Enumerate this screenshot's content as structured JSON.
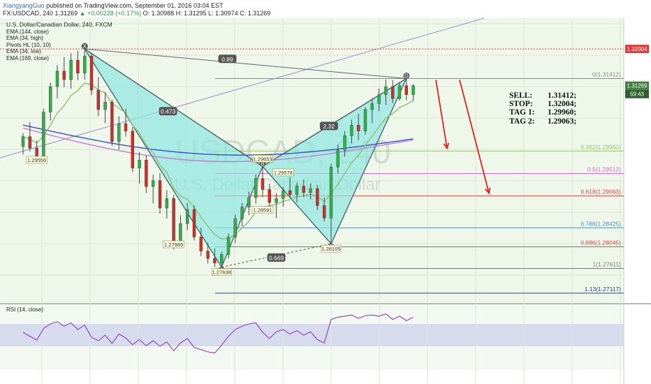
{
  "header": {
    "author": "XiangyangGuo",
    "published": "published on TradingView.com, September 01, 2016 03:04 EST",
    "symbol_line": "FX:USDCAD, 240",
    "last": "1.31269",
    "change": "▲ +0.00228 (+0.17%)",
    "ohlc": "O: 1.30988 H: 1.31295 L: 1.30974 C: 1.31269"
  },
  "indicators": {
    "title": "U.S. Dollar/Canadian Dollar, 240, FXCM",
    "items": [
      "EMA (144, close)",
      "EMA (34, high)",
      "Pivots HL (10, 10)",
      "EMA (34, low)",
      "EMA (169, close)"
    ]
  },
  "rsi_label": "RSI (14, close)",
  "watermark": {
    "symbol": "USDCAD, 240",
    "name": "U.S. Dollar/Canadian Dollar"
  },
  "trade_box": {
    "rows": [
      {
        "k": "SELL:",
        "v": "1.31412;"
      },
      {
        "k": "STOP:",
        "v": "1.32004;"
      },
      {
        "k": "TAG 1:",
        "v": "1.29960;"
      },
      {
        "k": "TAG 2:",
        "v": "1.29063;"
      }
    ]
  },
  "chart_data": {
    "type": "candlestick",
    "symbol": "FX:USDCAD",
    "timeframe": "240",
    "price_axis": {
      "last_price_label": "1.31269",
      "stop_label": "1.32004",
      "countdown_label": "59:43"
    },
    "fib_levels": [
      {
        "label": "0(1.31412)",
        "value": 1.31412,
        "color": "#8a8a8a"
      },
      {
        "label": "0.382(1.29960)",
        "value": 1.2996,
        "color": "#9fbf74"
      },
      {
        "label": "0.5(1.29512)",
        "value": 1.29512,
        "color": "#d86ad8"
      },
      {
        "label": "0.618(1.29063)",
        "value": 1.29063,
        "color": "#d84a4a"
      },
      {
        "label": "0.786(1.28425)",
        "value": 1.28425,
        "color": "#4b8fd0"
      },
      {
        "label": "0.886(1.28045)",
        "value": 1.28045,
        "color": "#d84a4a"
      },
      {
        "label": "1(1.27611)",
        "value": 1.27611,
        "color": "#777777"
      },
      {
        "label": "1.13(1.27117)",
        "value": 1.27117,
        "color": "#2a3f8a"
      }
    ],
    "stop_level": {
      "value": 1.32004,
      "label": "1.32004"
    },
    "pattern": {
      "name": "bearish harmonic XABCD",
      "points": [
        {
          "label": "X",
          "value": 1.32004,
          "candle": 9
        },
        {
          "label": "A",
          "value": 1.27638,
          "candle": 29,
          "price_label": "1.27638"
        },
        {
          "label": "B",
          "value": 1.29653,
          "candle": 35,
          "price_label": "1.29653"
        },
        {
          "label": "C",
          "value": 1.28105,
          "candle": 45,
          "price_label": "1.28105"
        },
        {
          "label": "D",
          "value": 1.31412,
          "candle": 56
        }
      ],
      "ratios": [
        "0.473",
        "0.669",
        "2.32",
        "0.89"
      ]
    },
    "pivot_labels": [
      {
        "label": "1.29556",
        "value": 1.2977,
        "candle": 2
      },
      {
        "label": "1.27989",
        "value": 1.2808,
        "candle": 22
      },
      {
        "label": "1.29578",
        "value": 1.2952,
        "candle": 38
      },
      {
        "label": "1.28591",
        "value": 1.2877,
        "candle": 35
      }
    ],
    "candles": [
      [
        1.3005,
        1.3032,
        1.2989,
        1.3025
      ],
      [
        1.3025,
        1.3054,
        1.2995,
        1.3002
      ],
      [
        1.3002,
        1.3017,
        1.2976,
        1.2985
      ],
      [
        1.2985,
        1.3081,
        1.2981,
        1.3074
      ],
      [
        1.3074,
        1.3133,
        1.3057,
        1.3125
      ],
      [
        1.3125,
        1.3168,
        1.3101,
        1.3156
      ],
      [
        1.3156,
        1.3184,
        1.3124,
        1.3139
      ],
      [
        1.3139,
        1.3192,
        1.3121,
        1.3178
      ],
      [
        1.3178,
        1.3197,
        1.3138,
        1.3152
      ],
      [
        1.3152,
        1.3201,
        1.3139,
        1.3186
      ],
      [
        1.3186,
        1.3193,
        1.3108,
        1.3118
      ],
      [
        1.3118,
        1.3144,
        1.3066,
        1.3079
      ],
      [
        1.3079,
        1.3114,
        1.3052,
        1.3094
      ],
      [
        1.3094,
        1.3099,
        1.3006,
        1.3015
      ],
      [
        1.3015,
        1.3066,
        1.2999,
        1.3051
      ],
      [
        1.3051,
        1.3081,
        1.3025,
        1.3036
      ],
      [
        1.3036,
        1.3044,
        1.2954,
        1.2962
      ],
      [
        1.2962,
        1.2994,
        1.2931,
        1.2978
      ],
      [
        1.2978,
        1.2987,
        1.2912,
        1.2925
      ],
      [
        1.2925,
        1.2949,
        1.2891,
        1.2937
      ],
      [
        1.2937,
        1.2952,
        1.2871,
        1.2882
      ],
      [
        1.2882,
        1.2918,
        1.2861,
        1.2901
      ],
      [
        1.2901,
        1.2908,
        1.2799,
        1.2813
      ],
      [
        1.2813,
        1.2868,
        1.2802,
        1.2851
      ],
      [
        1.2851,
        1.2892,
        1.2838,
        1.2879
      ],
      [
        1.2879,
        1.2887,
        1.2817,
        1.2824
      ],
      [
        1.2824,
        1.2843,
        1.2786,
        1.2796
      ],
      [
        1.2796,
        1.2812,
        1.2771,
        1.2781
      ],
      [
        1.2781,
        1.2801,
        1.2764,
        1.2772
      ],
      [
        1.2772,
        1.2795,
        1.2763,
        1.2789
      ],
      [
        1.2789,
        1.2831,
        1.2781,
        1.2824
      ],
      [
        1.2824,
        1.2869,
        1.2812,
        1.2861
      ],
      [
        1.2861,
        1.2892,
        1.2845,
        1.2884
      ],
      [
        1.2884,
        1.2915,
        1.2868,
        1.2903
      ],
      [
        1.2903,
        1.2949,
        1.2891,
        1.2941
      ],
      [
        1.2941,
        1.2965,
        1.2904,
        1.2919
      ],
      [
        1.2919,
        1.2931,
        1.2879,
        1.2893
      ],
      [
        1.2893,
        1.2912,
        1.2862,
        1.2901
      ],
      [
        1.2901,
        1.2924,
        1.2885,
        1.2917
      ],
      [
        1.2917,
        1.2944,
        1.2901,
        1.2909
      ],
      [
        1.2909,
        1.2933,
        1.2893,
        1.2926
      ],
      [
        1.2926,
        1.2939,
        1.2904,
        1.2913
      ],
      [
        1.2913,
        1.2931,
        1.2899,
        1.2921
      ],
      [
        1.2921,
        1.2928,
        1.2878,
        1.2887
      ],
      [
        1.2887,
        1.2903,
        1.2855,
        1.2862
      ],
      [
        1.2862,
        1.2971,
        1.2811,
        1.2964
      ],
      [
        1.2964,
        1.3009,
        1.2951,
        1.2998
      ],
      [
        1.2998,
        1.3036,
        1.2985,
        1.3027
      ],
      [
        1.3027,
        1.3059,
        1.3011,
        1.3048
      ],
      [
        1.3048,
        1.3071,
        1.3018,
        1.3036
      ],
      [
        1.3036,
        1.3084,
        1.3029,
        1.3079
      ],
      [
        1.3079,
        1.3102,
        1.3052,
        1.3091
      ],
      [
        1.3091,
        1.3121,
        1.3076,
        1.3109
      ],
      [
        1.3109,
        1.3139,
        1.3088,
        1.3125
      ],
      [
        1.3125,
        1.3138,
        1.3092,
        1.3101
      ],
      [
        1.3101,
        1.3134,
        1.3097,
        1.3127
      ],
      [
        1.3127,
        1.3141,
        1.3098,
        1.3109
      ],
      [
        1.3109,
        1.313,
        1.3097,
        1.3127
      ]
    ],
    "rsi": {
      "name": "RSI (14, close)",
      "band": [
        30,
        70
      ],
      "values": [
        55,
        48,
        41,
        62,
        70,
        74,
        66,
        72,
        60,
        68,
        46,
        40,
        50,
        35,
        52,
        45,
        33,
        42,
        31,
        40,
        30,
        38,
        22,
        36,
        44,
        28,
        24,
        20,
        18,
        32,
        48,
        60,
        66,
        70,
        72,
        55,
        44,
        56,
        60,
        52,
        58,
        50,
        56,
        42,
        36,
        78,
        82,
        84,
        86,
        80,
        85,
        86,
        84,
        88,
        78,
        84,
        76,
        82
      ]
    },
    "projection_arrows": [
      {
        "from": 1.31412,
        "to": 1.2996
      },
      {
        "from": 1.31412,
        "to": 1.29063
      }
    ]
  }
}
